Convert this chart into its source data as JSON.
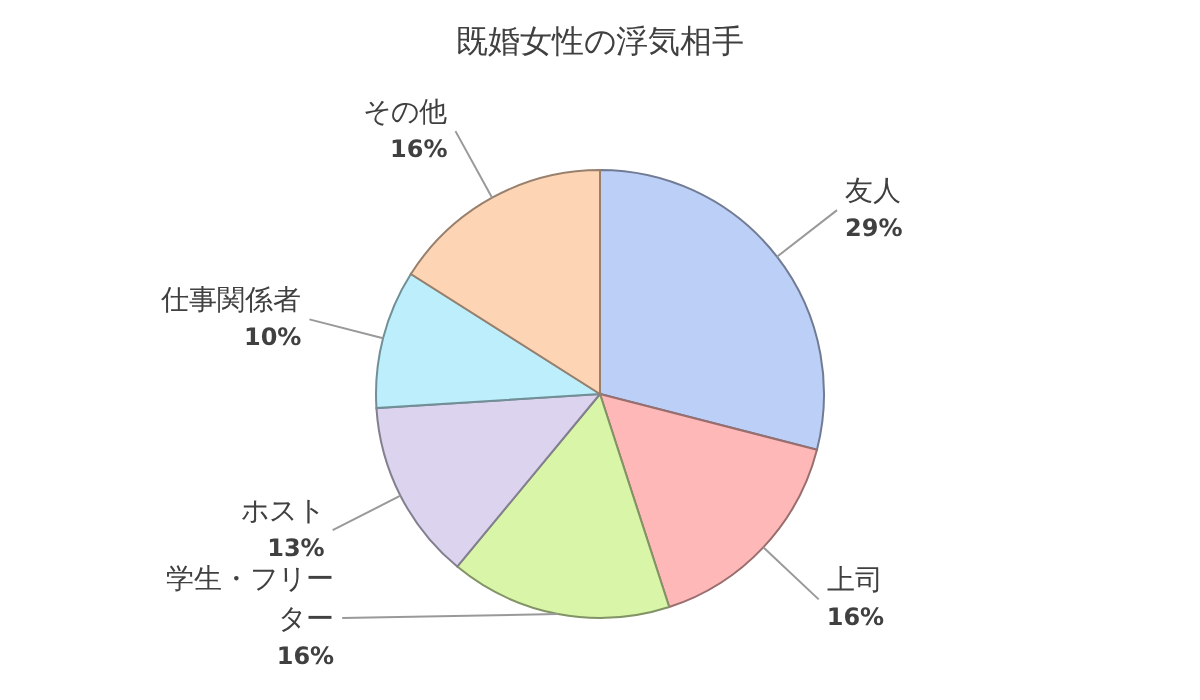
{
  "chart_data": {
    "type": "pie",
    "title": "既婚女性の浮気相手",
    "categories": [
      "友人",
      "上司",
      "学生・フリーター",
      "ホスト",
      "仕事関係者",
      "その他"
    ],
    "values": [
      29,
      16,
      16,
      13,
      10,
      16
    ],
    "colors": [
      "#bccff7",
      "#ffb8b8",
      "#d9f5a8",
      "#dcd4ef",
      "#bdeefb",
      "#fdd5b5"
    ],
    "value_labels": [
      "29%",
      "16%",
      "16%",
      "13%",
      "10%",
      "16%"
    ]
  }
}
